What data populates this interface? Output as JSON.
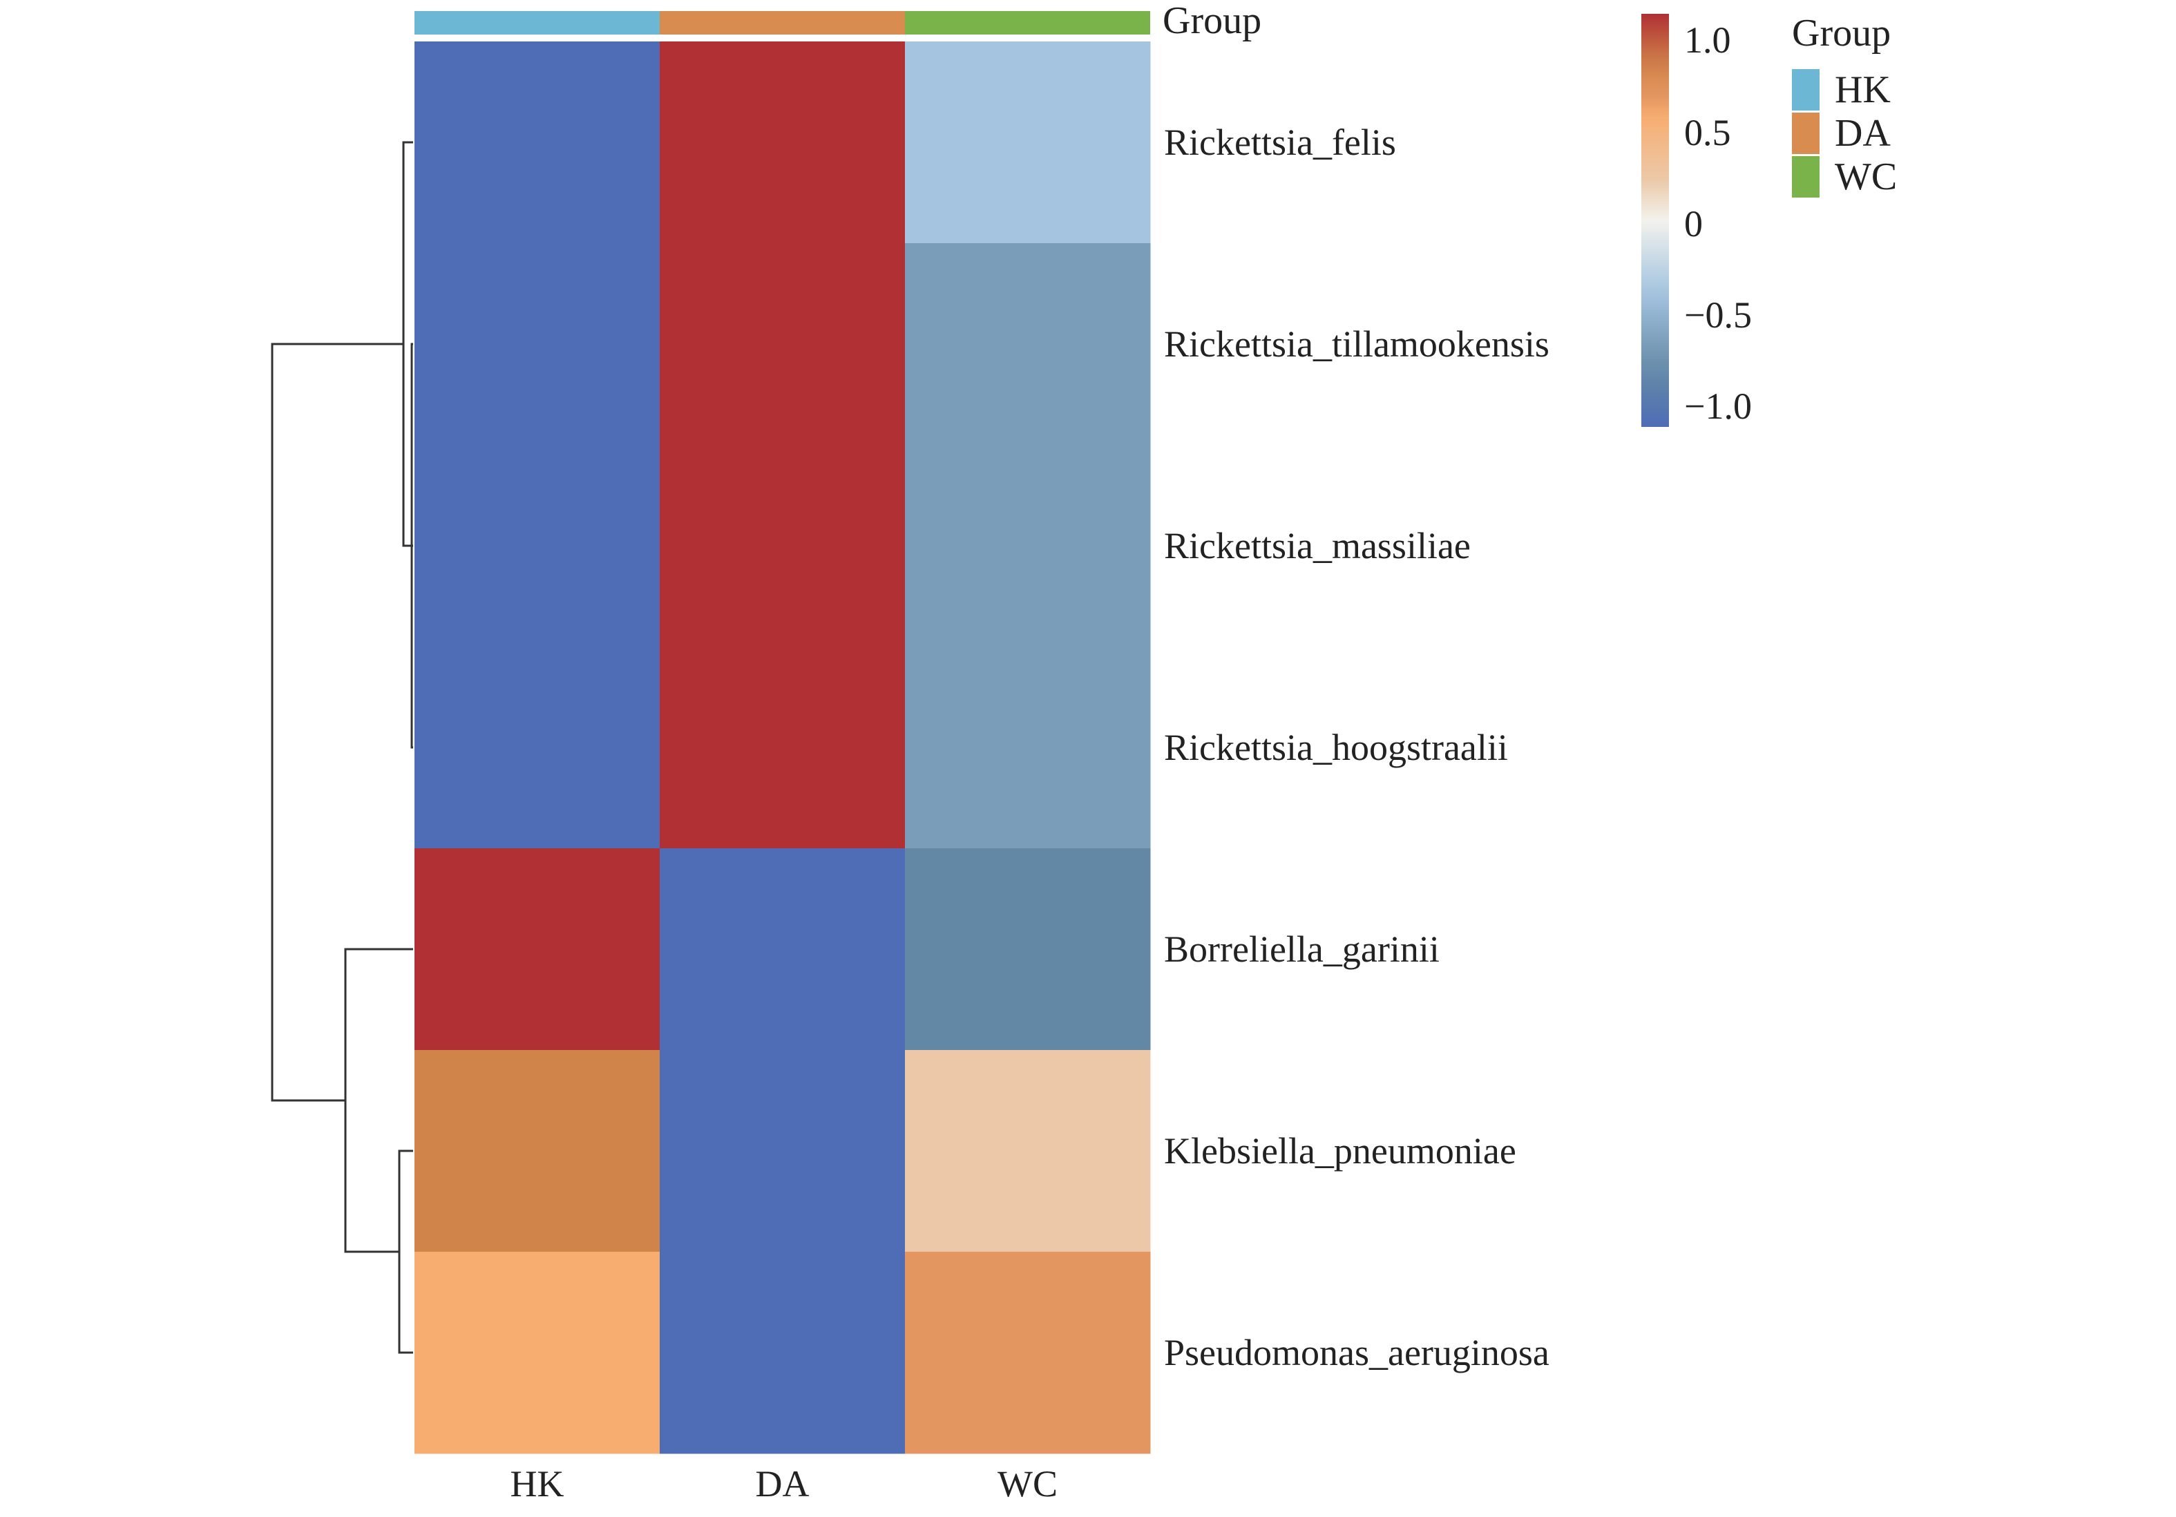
{
  "chart_data": {
    "type": "heatmap",
    "title": "",
    "columns": [
      "HK",
      "DA",
      "WC"
    ],
    "rows": [
      "Rickettsia_felis",
      "Rickettsia_tillamookensis",
      "Rickettsia_massiliae",
      "Rickettsia_hoogstraalii",
      "Borreliella_garinii",
      "Klebsiella_pneumoniae",
      "Pseudomonas_aeruginosa"
    ],
    "values": [
      [
        -1.0,
        1.0,
        -0.35
      ],
      [
        -1.0,
        1.0,
        -0.6
      ],
      [
        -1.0,
        1.0,
        -0.6
      ],
      [
        -1.0,
        1.0,
        -0.6
      ],
      [
        1.0,
        -1.0,
        -0.75
      ],
      [
        0.75,
        -1.0,
        0.2
      ],
      [
        0.5,
        -1.0,
        0.6
      ]
    ],
    "annotation": {
      "label": "Group",
      "values": [
        "HK",
        "DA",
        "WC"
      ]
    },
    "legend": {
      "title": "Group",
      "items": [
        {
          "label": "HK",
          "color": "#6cb7d4"
        },
        {
          "label": "DA",
          "color": "#d98c4f"
        },
        {
          "label": "WC",
          "color": "#7ab34a"
        }
      ]
    },
    "color_scale": {
      "min": -1.0,
      "max": 1.0,
      "ticks": [
        "1.0",
        "0.5",
        "0",
        "−0.5",
        "−1.0"
      ],
      "low_color": "#4f6cb7",
      "high_color": "#b03034"
    },
    "row_dendrogram": true
  }
}
